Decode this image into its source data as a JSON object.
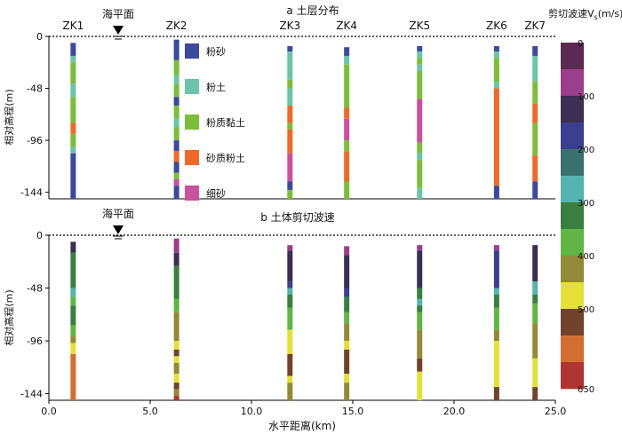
{
  "chart_data": [
    {
      "type": "bar",
      "title": "a 土层分布",
      "xlabel": "",
      "ylabel": "相对高程(m)",
      "ylim": [
        -150,
        0
      ],
      "yticks": [
        0,
        -48,
        -96,
        -144
      ],
      "sea_level_label": "海平面",
      "legend": [
        {
          "name": "粉砂",
          "color": "#3b4a9c"
        },
        {
          "name": "粉土",
          "color": "#6cc3a8"
        },
        {
          "name": "粉质黏土",
          "color": "#7cbd3c"
        },
        {
          "name": "砂质粉土",
          "color": "#ee6a2a"
        },
        {
          "name": "细砂",
          "color": "#c9519e"
        }
      ],
      "boreholes": [
        {
          "name": "ZK1",
          "x": 1.2,
          "layers": [
            {
              "top": -6,
              "bottom": -18,
              "color": "#3b4a9c"
            },
            {
              "top": -18,
              "bottom": -24,
              "color": "#6cc3a8"
            },
            {
              "top": -24,
              "bottom": -44,
              "color": "#7cbd3c"
            },
            {
              "top": -44,
              "bottom": -56,
              "color": "#6cc3a8"
            },
            {
              "top": -56,
              "bottom": -80,
              "color": "#7cbd3c"
            },
            {
              "top": -80,
              "bottom": -90,
              "color": "#ee6a2a"
            },
            {
              "top": -90,
              "bottom": -102,
              "color": "#7cbd3c"
            },
            {
              "top": -102,
              "bottom": -108,
              "color": "#6cc3a8"
            },
            {
              "top": -108,
              "bottom": -150,
              "color": "#3b4a9c"
            }
          ]
        },
        {
          "name": "ZK2",
          "x": 6.3,
          "layers": [
            {
              "top": -3,
              "bottom": -22,
              "color": "#3b4a9c"
            },
            {
              "top": -22,
              "bottom": -36,
              "color": "#7cbd3c"
            },
            {
              "top": -36,
              "bottom": -44,
              "color": "#6cc3a8"
            },
            {
              "top": -44,
              "bottom": -56,
              "color": "#7cbd3c"
            },
            {
              "top": -56,
              "bottom": -64,
              "color": "#3b4a9c"
            },
            {
              "top": -64,
              "bottom": -76,
              "color": "#7cbd3c"
            },
            {
              "top": -76,
              "bottom": -84,
              "color": "#6cc3a8"
            },
            {
              "top": -84,
              "bottom": -96,
              "color": "#7cbd3c"
            },
            {
              "top": -96,
              "bottom": -106,
              "color": "#3b4a9c"
            },
            {
              "top": -106,
              "bottom": -116,
              "color": "#ee6a2a"
            },
            {
              "top": -116,
              "bottom": -126,
              "color": "#3b4a9c"
            },
            {
              "top": -126,
              "bottom": -132,
              "color": "#7cbd3c"
            },
            {
              "top": -132,
              "bottom": -138,
              "color": "#c9519e"
            },
            {
              "top": -138,
              "bottom": -150,
              "color": "#3b4a9c"
            }
          ]
        },
        {
          "name": "ZK3",
          "x": 11.9,
          "layers": [
            {
              "top": -9,
              "bottom": -14,
              "color": "#3b4a9c"
            },
            {
              "top": -14,
              "bottom": -40,
              "color": "#6cc3a8"
            },
            {
              "top": -40,
              "bottom": -48,
              "color": "#7cbd3c"
            },
            {
              "top": -48,
              "bottom": -64,
              "color": "#6cc3a8"
            },
            {
              "top": -64,
              "bottom": -80,
              "color": "#ee6a2a"
            },
            {
              "top": -80,
              "bottom": -86,
              "color": "#7cbd3c"
            },
            {
              "top": -86,
              "bottom": -108,
              "color": "#ee6a2a"
            },
            {
              "top": -108,
              "bottom": -134,
              "color": "#c9519e"
            },
            {
              "top": -134,
              "bottom": -142,
              "color": "#3b4a9c"
            },
            {
              "top": -142,
              "bottom": -150,
              "color": "#7cbd3c"
            }
          ]
        },
        {
          "name": "ZK4",
          "x": 14.7,
          "layers": [
            {
              "top": -10,
              "bottom": -18,
              "color": "#3b4a9c"
            },
            {
              "top": -18,
              "bottom": -26,
              "color": "#6cc3a8"
            },
            {
              "top": -26,
              "bottom": -66,
              "color": "#7cbd3c"
            },
            {
              "top": -66,
              "bottom": -76,
              "color": "#ee6a2a"
            },
            {
              "top": -76,
              "bottom": -96,
              "color": "#c9519e"
            },
            {
              "top": -96,
              "bottom": -106,
              "color": "#7cbd3c"
            },
            {
              "top": -106,
              "bottom": -134,
              "color": "#ee6a2a"
            },
            {
              "top": -134,
              "bottom": -150,
              "color": "#7cbd3c"
            }
          ]
        },
        {
          "name": "ZK5",
          "x": 18.3,
          "layers": [
            {
              "top": -9,
              "bottom": -14,
              "color": "#3b4a9c"
            },
            {
              "top": -14,
              "bottom": -20,
              "color": "#6cc3a8"
            },
            {
              "top": -20,
              "bottom": -26,
              "color": "#7cbd3c"
            },
            {
              "top": -26,
              "bottom": -32,
              "color": "#6cc3a8"
            },
            {
              "top": -32,
              "bottom": -58,
              "color": "#7cbd3c"
            },
            {
              "top": -58,
              "bottom": -98,
              "color": "#c9519e"
            },
            {
              "top": -98,
              "bottom": -108,
              "color": "#7cbd3c"
            },
            {
              "top": -108,
              "bottom": -114,
              "color": "#6cc3a8"
            },
            {
              "top": -114,
              "bottom": -140,
              "color": "#7cbd3c"
            },
            {
              "top": -140,
              "bottom": -150,
              "color": "#6cc3a8"
            }
          ]
        },
        {
          "name": "ZK6",
          "x": 22.1,
          "layers": [
            {
              "top": -9,
              "bottom": -14,
              "color": "#3b4a9c"
            },
            {
              "top": -14,
              "bottom": -20,
              "color": "#6cc3a8"
            },
            {
              "top": -20,
              "bottom": -42,
              "color": "#7cbd3c"
            },
            {
              "top": -42,
              "bottom": -48,
              "color": "#6cc3a8"
            },
            {
              "top": -48,
              "bottom": -138,
              "color": "#ee6a2a"
            },
            {
              "top": -138,
              "bottom": -150,
              "color": "#3b4a9c"
            }
          ]
        },
        {
          "name": "ZK7",
          "x": 24.0,
          "layers": [
            {
              "top": -9,
              "bottom": -18,
              "color": "#3b4a9c"
            },
            {
              "top": -18,
              "bottom": -42,
              "color": "#6cc3a8"
            },
            {
              "top": -42,
              "bottom": -62,
              "color": "#7cbd3c"
            },
            {
              "top": -62,
              "bottom": -80,
              "color": "#ee6a2a"
            },
            {
              "top": -80,
              "bottom": -110,
              "color": "#7cbd3c"
            },
            {
              "top": -110,
              "bottom": -134,
              "color": "#ee6a2a"
            },
            {
              "top": -134,
              "bottom": -150,
              "color": "#3b4a9c"
            }
          ]
        }
      ]
    },
    {
      "type": "bar",
      "title": "b 土体剪切波速",
      "xlabel": "水平距离(km)",
      "ylabel": "相对高程(m)",
      "xlim": [
        0,
        25
      ],
      "xticks": [
        0.0,
        5.0,
        10.0,
        15.0,
        20.0,
        25.0
      ],
      "ylim": [
        -150,
        0
      ],
      "yticks": [
        0,
        -48,
        -96,
        -144
      ],
      "sea_level_label": "海平面",
      "boreholes": [
        {
          "name": "ZK1",
          "x": 1.2,
          "layers": [
            {
              "top": -6,
              "bottom": -16,
              "color": "#3c2f52"
            },
            {
              "top": -16,
              "bottom": -48,
              "color": "#3b7f40"
            },
            {
              "top": -48,
              "bottom": -56,
              "color": "#55b3b0"
            },
            {
              "top": -56,
              "bottom": -64,
              "color": "#60b546"
            },
            {
              "top": -64,
              "bottom": -82,
              "color": "#3b7f40"
            },
            {
              "top": -82,
              "bottom": -92,
              "color": "#60b546"
            },
            {
              "top": -92,
              "bottom": -98,
              "color": "#938a38"
            },
            {
              "top": -98,
              "bottom": -108,
              "color": "#e3e03a"
            },
            {
              "top": -108,
              "bottom": -150,
              "color": "#d16f33"
            }
          ]
        },
        {
          "name": "ZK2",
          "x": 6.3,
          "layers": [
            {
              "top": -3,
              "bottom": -16,
              "color": "#9b3f8c"
            },
            {
              "top": -16,
              "bottom": -28,
              "color": "#3c2f52"
            },
            {
              "top": -28,
              "bottom": -58,
              "color": "#3b7f40"
            },
            {
              "top": -58,
              "bottom": -70,
              "color": "#60b546"
            },
            {
              "top": -70,
              "bottom": -96,
              "color": "#938a38"
            },
            {
              "top": -96,
              "bottom": -104,
              "color": "#e3e03a"
            },
            {
              "top": -104,
              "bottom": -110,
              "color": "#70432a"
            },
            {
              "top": -110,
              "bottom": -116,
              "color": "#e3e03a"
            },
            {
              "top": -116,
              "bottom": -126,
              "color": "#938a38"
            },
            {
              "top": -126,
              "bottom": -134,
              "color": "#e3e03a"
            },
            {
              "top": -134,
              "bottom": -140,
              "color": "#70432a"
            },
            {
              "top": -140,
              "bottom": -146,
              "color": "#938a38"
            },
            {
              "top": -146,
              "bottom": -150,
              "color": "#b03432"
            }
          ]
        },
        {
          "name": "ZK3",
          "x": 11.9,
          "layers": [
            {
              "top": -9,
              "bottom": -14,
              "color": "#9b3f8c"
            },
            {
              "top": -14,
              "bottom": -42,
              "color": "#3c2f52"
            },
            {
              "top": -42,
              "bottom": -48,
              "color": "#3a3f8f"
            },
            {
              "top": -48,
              "bottom": -54,
              "color": "#55b3b0"
            },
            {
              "top": -54,
              "bottom": -66,
              "color": "#3b7f40"
            },
            {
              "top": -66,
              "bottom": -86,
              "color": "#60b546"
            },
            {
              "top": -86,
              "bottom": -108,
              "color": "#e3e03a"
            },
            {
              "top": -108,
              "bottom": -128,
              "color": "#70432a"
            },
            {
              "top": -128,
              "bottom": -134,
              "color": "#e3e03a"
            },
            {
              "top": -134,
              "bottom": -150,
              "color": "#938a38"
            }
          ]
        },
        {
          "name": "ZK4",
          "x": 14.7,
          "layers": [
            {
              "top": -10,
              "bottom": -18,
              "color": "#9b3f8c"
            },
            {
              "top": -18,
              "bottom": -48,
              "color": "#3c2f52"
            },
            {
              "top": -48,
              "bottom": -56,
              "color": "#3a3f8f"
            },
            {
              "top": -56,
              "bottom": -70,
              "color": "#3b7f40"
            },
            {
              "top": -70,
              "bottom": -80,
              "color": "#60b546"
            },
            {
              "top": -80,
              "bottom": -96,
              "color": "#938a38"
            },
            {
              "top": -96,
              "bottom": -104,
              "color": "#e3e03a"
            },
            {
              "top": -104,
              "bottom": -126,
              "color": "#70432a"
            },
            {
              "top": -126,
              "bottom": -134,
              "color": "#e3e03a"
            },
            {
              "top": -134,
              "bottom": -150,
              "color": "#938a38"
            }
          ]
        },
        {
          "name": "ZK5",
          "x": 18.3,
          "layers": [
            {
              "top": -9,
              "bottom": -14,
              "color": "#9b3f8c"
            },
            {
              "top": -14,
              "bottom": -48,
              "color": "#3c2f52"
            },
            {
              "top": -48,
              "bottom": -58,
              "color": "#3b7f40"
            },
            {
              "top": -58,
              "bottom": -64,
              "color": "#55b3b0"
            },
            {
              "top": -64,
              "bottom": -70,
              "color": "#3b7f40"
            },
            {
              "top": -70,
              "bottom": -86,
              "color": "#60b546"
            },
            {
              "top": -86,
              "bottom": -112,
              "color": "#938a38"
            },
            {
              "top": -112,
              "bottom": -124,
              "color": "#70432a"
            },
            {
              "top": -124,
              "bottom": -150,
              "color": "#e3e03a"
            }
          ]
        },
        {
          "name": "ZK6",
          "x": 22.1,
          "layers": [
            {
              "top": -9,
              "bottom": -14,
              "color": "#9b3f8c"
            },
            {
              "top": -14,
              "bottom": -48,
              "color": "#3a3f8f"
            },
            {
              "top": -48,
              "bottom": -54,
              "color": "#55b3b0"
            },
            {
              "top": -54,
              "bottom": -66,
              "color": "#3b7f40"
            },
            {
              "top": -66,
              "bottom": -86,
              "color": "#60b546"
            },
            {
              "top": -86,
              "bottom": -96,
              "color": "#938a38"
            },
            {
              "top": -96,
              "bottom": -138,
              "color": "#e3e03a"
            },
            {
              "top": -138,
              "bottom": -150,
              "color": "#70432a"
            }
          ]
        },
        {
          "name": "ZK7",
          "x": 24.0,
          "layers": [
            {
              "top": -9,
              "bottom": -42,
              "color": "#3c2f52"
            },
            {
              "top": -42,
              "bottom": -54,
              "color": "#55b3b0"
            },
            {
              "top": -54,
              "bottom": -62,
              "color": "#3b7f40"
            },
            {
              "top": -62,
              "bottom": -80,
              "color": "#60b546"
            },
            {
              "top": -80,
              "bottom": -112,
              "color": "#938a38"
            },
            {
              "top": -112,
              "bottom": -138,
              "color": "#e3e03a"
            },
            {
              "top": -138,
              "bottom": -150,
              "color": "#70432a"
            }
          ]
        }
      ]
    }
  ],
  "colorbar": {
    "title": "剪切波速V",
    "title_sub": "s",
    "title_unit": "(m/s)",
    "min": 0,
    "max": 650,
    "tick_values": [
      0,
      100,
      200,
      300,
      400,
      500,
      650
    ],
    "tick_labels": [
      "0",
      "100",
      "200",
      "300",
      "400",
      "500",
      "650"
    ],
    "colors": [
      "#5a2a52",
      "#9b3f8c",
      "#3c2f52",
      "#3a3f8f",
      "#3a716d",
      "#55b3b0",
      "#3b7f40",
      "#60b546",
      "#938a38",
      "#e3e03a",
      "#70432a",
      "#d16f33",
      "#b03432"
    ]
  }
}
